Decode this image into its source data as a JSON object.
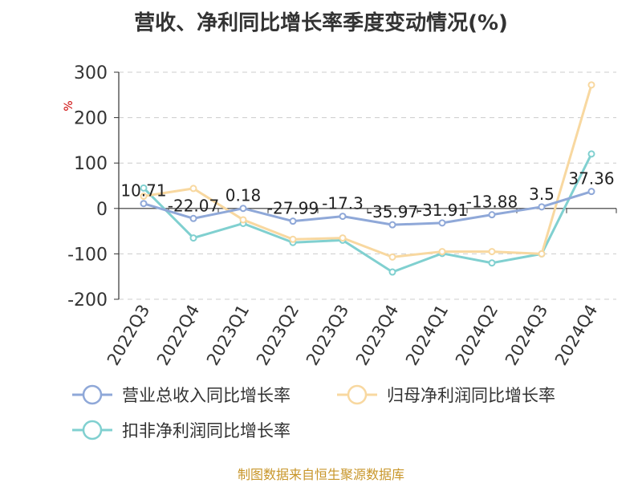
{
  "title": "营收、净利同比增长率季度变动情况(%)",
  "source": "制图数据来自恒生聚源数据库",
  "chart_data": {
    "type": "line",
    "title": "营收、净利同比增长率季度变动情况(%)",
    "xlabel": "",
    "ylabel": "%",
    "ylim": [
      -200,
      300
    ],
    "yticks": [
      300,
      200,
      100,
      0,
      -100,
      -200
    ],
    "grid": true,
    "legend_position": "bottom",
    "categories": [
      "2022Q3",
      "2022Q4",
      "2023Q1",
      "2023Q2",
      "2023Q3",
      "2023Q4",
      "2024Q1",
      "2024Q2",
      "2024Q3",
      "2024Q4"
    ],
    "series": [
      {
        "name": "营业总收入同比增长率",
        "color": "#8fa8d8",
        "values": [
          10.71,
          -22.07,
          0.18,
          -27.99,
          -17.3,
          -35.97,
          -31.91,
          -13.88,
          3.5,
          37.36
        ],
        "labels": [
          "10.71",
          "-22.07",
          "0.18",
          "-27.99",
          "-17.3",
          "-35.97",
          "-31.91",
          "-13.88",
          "3.5",
          "37.36"
        ]
      },
      {
        "name": "归母净利润同比增长率",
        "color": "#f8d8a0",
        "values": [
          27,
          44,
          -25,
          -68,
          -65,
          -107,
          -95,
          -95,
          -100,
          272
        ]
      },
      {
        "name": "扣非净利润同比增长率",
        "color": "#80d0d0",
        "values": [
          45,
          -65,
          -33,
          -75,
          -70,
          -140,
          -99,
          -120,
          -100,
          120
        ]
      }
    ]
  }
}
